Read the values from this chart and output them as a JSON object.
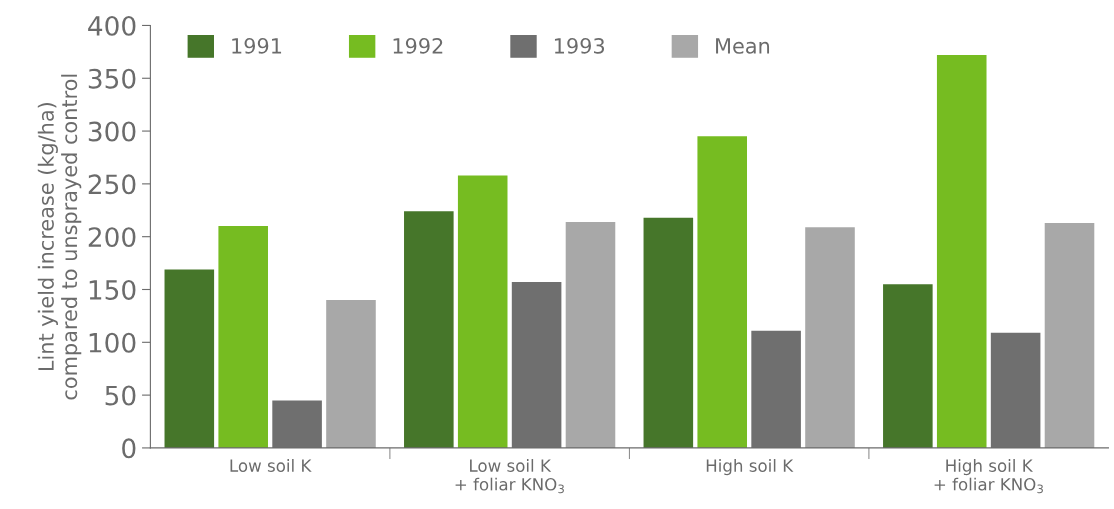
{
  "chart_data": {
    "type": "bar",
    "ylabel": "Lint yield increase (kg/ha)\ncompared to unsprayed control",
    "categories": [
      "Low soil K",
      "Low soil K\n+ foliar KNO$_{3}$",
      "High soil K",
      "High soil K\n+ foliar KNO$_{3}$"
    ],
    "series": [
      {
        "name": "1991",
        "color": "#46762a",
        "values": [
          169,
          224,
          218,
          155
        ]
      },
      {
        "name": "1992",
        "color": "#76bc21",
        "values": [
          210,
          258,
          295,
          372
        ]
      },
      {
        "name": "1993",
        "color": "#6f6f6f",
        "values": [
          45,
          157,
          111,
          109
        ]
      },
      {
        "name": "Mean",
        "color": "#a8a8a8",
        "values": [
          140,
          214,
          209,
          213
        ]
      }
    ],
    "ylim": [
      0,
      400
    ],
    "yticks": [
      0,
      50,
      100,
      150,
      200,
      250,
      300,
      350,
      400
    ],
    "grid": false,
    "legend": "top left"
  }
}
